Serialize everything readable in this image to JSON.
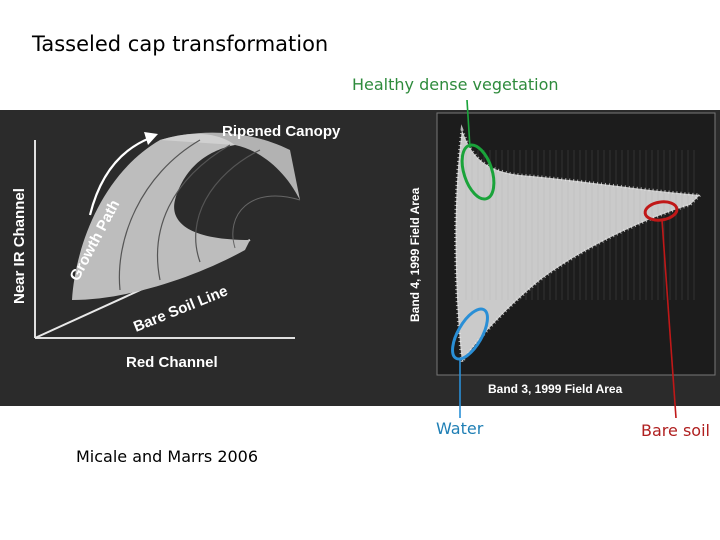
{
  "slide": {
    "title": "Tasseled cap transformation",
    "credit": "Micale and Marrs 2006"
  },
  "callouts": {
    "vegetation": "Healthy dense vegetation",
    "water": "Water",
    "bare_soil": "Bare soil"
  },
  "left_diagram": {
    "y_axis_label": "Near IR Channel",
    "x_axis_label": "Red Channel",
    "canopy_label": "Ripened Canopy",
    "growth_label": "Growth Path",
    "soil_line_label": "Bare Soil Line"
  },
  "right_scatter": {
    "y_axis_label": "Band 4, 1999 Field Area",
    "x_axis_label": "Band 3, 1999 Field Area"
  },
  "colors": {
    "vegetation": "#1aa33a",
    "water": "#2a8fd6",
    "bare_soil": "#c01818",
    "panel_bg": "#2b2b2b"
  }
}
